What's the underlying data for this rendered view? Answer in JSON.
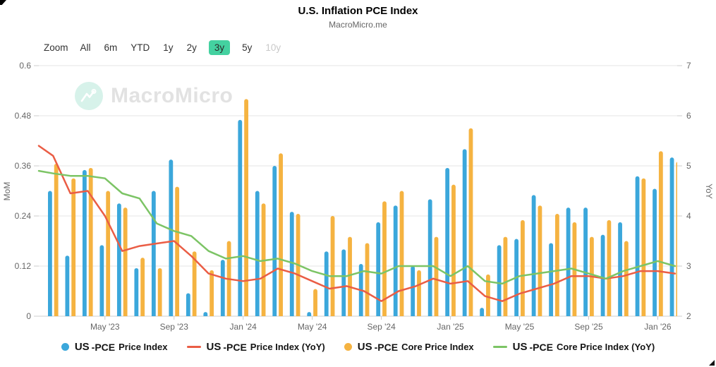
{
  "header": {
    "title": "U.S. Inflation PCE Index",
    "subtitle": "MacroMicro.me"
  },
  "toolbar": {
    "zoom_label": "Zoom",
    "ranges": [
      {
        "label": "All"
      },
      {
        "label": "6m"
      },
      {
        "label": "YTD"
      },
      {
        "label": "1y"
      },
      {
        "label": "2y"
      },
      {
        "label": "3y",
        "selected": true
      },
      {
        "label": "5y"
      },
      {
        "label": "10y",
        "disabled": true
      }
    ],
    "selected_color": "#44d1a0"
  },
  "watermark": {
    "text": "MacroMicro",
    "circle_color": "#d7f2ea"
  },
  "chart_data": {
    "type": "bar+line combo, dual axis",
    "months": [
      "Feb '23",
      "Mar '23",
      "Apr '23",
      "May '23",
      "Jun '23",
      "Jul '23",
      "Aug '23",
      "Sep '23",
      "Oct '23",
      "Nov '23",
      "Dec '23",
      "Jan '24",
      "Feb '24",
      "Mar '24",
      "Apr '24",
      "May '24",
      "Jun '24",
      "Jul '24",
      "Aug '24",
      "Sep '24",
      "Oct '24",
      "Nov '24",
      "Dec '24",
      "Jan '25",
      "Feb '25",
      "Mar '25",
      "Apr '25",
      "May '25",
      "Jun '25",
      "Jul '25",
      "Aug '25",
      "Sep '25",
      "Oct '25",
      "Nov '25",
      "Dec '25",
      "Jan '26",
      "Feb '26"
    ],
    "x_tick_labels": [
      "May '23",
      "Sep '23",
      "Jan '24",
      "May '24",
      "Sep '24",
      "Jan '25",
      "May '25",
      "Sep '25",
      "Jan '26"
    ],
    "left_axis": {
      "title": "MoM",
      "min": 0,
      "max": 0.6,
      "tick_labels": [
        "0",
        "0.12",
        "0.24",
        "0.36",
        "0.48",
        "0.6"
      ]
    },
    "right_axis": {
      "title": "YoY",
      "min": 2,
      "max": 7,
      "tick_labels": [
        "2",
        "3",
        "4",
        "5",
        "6",
        "7"
      ]
    },
    "grid": "horizontal only",
    "legend_position": "bottom center",
    "series": [
      {
        "key": "pce-price-index-mom",
        "name": "US -PCE Price Index",
        "type": "bar",
        "axis": "left",
        "color": "#3ba7db",
        "values": [
          0.3,
          0.145,
          0.35,
          0.17,
          0.27,
          0.115,
          0.3,
          0.375,
          0.055,
          0.01,
          0.135,
          0.47,
          0.3,
          0.36,
          0.25,
          0.01,
          0.155,
          0.16,
          0.125,
          0.225,
          0.265,
          0.12,
          0.28,
          0.355,
          0.4,
          0.02,
          0.17,
          0.185,
          0.29,
          0.175,
          0.26,
          0.26,
          0.195,
          0.225,
          0.335,
          0.305,
          0.38
        ]
      },
      {
        "key": "core-pce-price-index-mom",
        "name": "US -PCE Core Price Index",
        "type": "bar",
        "axis": "left",
        "color": "#f5b341",
        "values": [
          0.365,
          0.33,
          0.355,
          0.3,
          0.26,
          0.14,
          0.115,
          0.31,
          0.155,
          0.11,
          0.18,
          0.52,
          0.27,
          0.39,
          0.245,
          0.065,
          0.24,
          0.19,
          0.175,
          0.275,
          0.3,
          0.11,
          0.19,
          0.315,
          0.45,
          0.1,
          0.19,
          0.23,
          0.265,
          0.245,
          0.225,
          0.19,
          0.23,
          0.18,
          0.33,
          0.395,
          0.37
        ]
      },
      {
        "key": "pce-price-index-yoy",
        "name": "US -PCE Price Index (YoY)",
        "type": "line",
        "axis": "right",
        "color": "#ea5d45",
        "left_edge": 5.4,
        "values": [
          5.2,
          4.45,
          4.5,
          4.0,
          3.3,
          3.4,
          3.45,
          3.5,
          3.2,
          2.85,
          2.75,
          2.7,
          2.75,
          2.95,
          2.85,
          2.7,
          2.55,
          2.6,
          2.5,
          2.3,
          2.5,
          2.6,
          2.75,
          2.65,
          2.7,
          2.4,
          2.3,
          2.45,
          2.55,
          2.65,
          2.8,
          2.8,
          2.75,
          2.8,
          2.9,
          2.9,
          2.85
        ]
      },
      {
        "key": "core-pce-price-index-yoy",
        "name": "US -PCE Core Price Index (YoY)",
        "type": "line",
        "axis": "right",
        "color": "#7cc465",
        "left_edge": 4.9,
        "values": [
          4.85,
          4.8,
          4.8,
          4.75,
          4.45,
          4.35,
          3.85,
          3.7,
          3.6,
          3.3,
          3.15,
          3.2,
          3.1,
          3.15,
          3.05,
          2.9,
          2.8,
          2.8,
          2.9,
          2.85,
          3.0,
          3.0,
          3.0,
          2.8,
          3.0,
          2.7,
          2.65,
          2.8,
          2.85,
          2.9,
          2.95,
          2.85,
          2.75,
          2.9,
          3.0,
          3.1,
          3.0
        ]
      }
    ]
  },
  "legend": [
    {
      "key": "pce-price-index-mom",
      "marker": "circle",
      "color": "#3ba7db",
      "p1": "US",
      "p2": "-PCE",
      "p3": "Price Index"
    },
    {
      "key": "pce-price-index-yoy",
      "marker": "dash",
      "color": "#ea5d45",
      "p1": "US",
      "p2": "-PCE",
      "p3": "Price Index (YoY)"
    },
    {
      "key": "core-pce-price-index-mom",
      "marker": "circle",
      "color": "#f5b341",
      "p1": "US",
      "p2": "-PCE",
      "p3": "Core Price Index"
    },
    {
      "key": "core-pce-price-index-yoy",
      "marker": "dash",
      "color": "#7cc465",
      "p1": "US",
      "p2": "-PCE",
      "p3": "Core Price Index (YoY)"
    }
  ]
}
